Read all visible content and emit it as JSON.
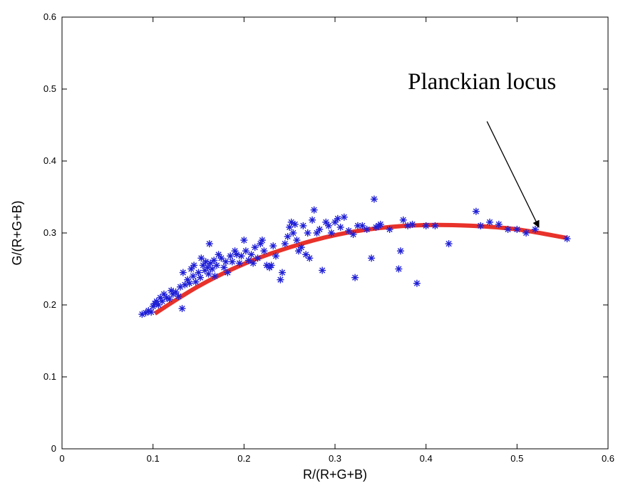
{
  "chart_data": {
    "type": "scatter",
    "title": "",
    "xlabel": "R/(R+G+B)",
    "ylabel": "G/(R+G+B)",
    "xlim": [
      0,
      0.6
    ],
    "ylim": [
      0,
      0.6
    ],
    "grid": false,
    "xticks": [
      0,
      0.1,
      0.2,
      0.3,
      0.4,
      0.5,
      0.6
    ],
    "yticks": [
      0,
      0.1,
      0.2,
      0.3,
      0.4,
      0.5,
      0.6
    ],
    "xtick_labels": [
      "0",
      "0.1",
      "0.2",
      "0.3",
      "0.4",
      "0.5",
      "0.6"
    ],
    "ytick_labels": [
      "0",
      "0.1",
      "0.2",
      "0.3",
      "0.4",
      "0.5",
      "0.6"
    ],
    "series": [
      {
        "kind": "scatter",
        "marker": "asterisk",
        "color": "#1f1fd6",
        "points": [
          [
            0.088,
            0.187
          ],
          [
            0.092,
            0.189
          ],
          [
            0.095,
            0.192
          ],
          [
            0.098,
            0.19
          ],
          [
            0.1,
            0.198
          ],
          [
            0.102,
            0.202
          ],
          [
            0.104,
            0.205
          ],
          [
            0.106,
            0.2
          ],
          [
            0.108,
            0.21
          ],
          [
            0.11,
            0.205
          ],
          [
            0.112,
            0.215
          ],
          [
            0.115,
            0.21
          ],
          [
            0.118,
            0.208
          ],
          [
            0.12,
            0.22
          ],
          [
            0.122,
            0.215
          ],
          [
            0.125,
            0.218
          ],
          [
            0.128,
            0.212
          ],
          [
            0.13,
            0.225
          ],
          [
            0.132,
            0.195
          ],
          [
            0.133,
            0.245
          ],
          [
            0.135,
            0.228
          ],
          [
            0.138,
            0.235
          ],
          [
            0.14,
            0.23
          ],
          [
            0.142,
            0.25
          ],
          [
            0.144,
            0.24
          ],
          [
            0.145,
            0.255
          ],
          [
            0.147,
            0.232
          ],
          [
            0.15,
            0.245
          ],
          [
            0.152,
            0.238
          ],
          [
            0.153,
            0.265
          ],
          [
            0.155,
            0.255
          ],
          [
            0.157,
            0.248
          ],
          [
            0.158,
            0.26
          ],
          [
            0.16,
            0.252
          ],
          [
            0.161,
            0.243
          ],
          [
            0.162,
            0.285
          ],
          [
            0.163,
            0.258
          ],
          [
            0.165,
            0.25
          ],
          [
            0.167,
            0.262
          ],
          [
            0.168,
            0.24
          ],
          [
            0.17,
            0.255
          ],
          [
            0.172,
            0.27
          ],
          [
            0.175,
            0.265
          ],
          [
            0.178,
            0.252
          ],
          [
            0.18,
            0.26
          ],
          [
            0.182,
            0.245
          ],
          [
            0.185,
            0.268
          ],
          [
            0.187,
            0.26
          ],
          [
            0.19,
            0.275
          ],
          [
            0.192,
            0.27
          ],
          [
            0.195,
            0.258
          ],
          [
            0.197,
            0.268
          ],
          [
            0.2,
            0.29
          ],
          [
            0.202,
            0.275
          ],
          [
            0.205,
            0.262
          ],
          [
            0.208,
            0.27
          ],
          [
            0.21,
            0.258
          ],
          [
            0.212,
            0.28
          ],
          [
            0.215,
            0.265
          ],
          [
            0.218,
            0.285
          ],
          [
            0.22,
            0.29
          ],
          [
            0.222,
            0.275
          ],
          [
            0.225,
            0.255
          ],
          [
            0.228,
            0.252
          ],
          [
            0.23,
            0.255
          ],
          [
            0.232,
            0.282
          ],
          [
            0.235,
            0.268
          ],
          [
            0.24,
            0.235
          ],
          [
            0.242,
            0.245
          ],
          [
            0.245,
            0.285
          ],
          [
            0.248,
            0.295
          ],
          [
            0.25,
            0.308
          ],
          [
            0.252,
            0.315
          ],
          [
            0.254,
            0.3
          ],
          [
            0.256,
            0.312
          ],
          [
            0.258,
            0.29
          ],
          [
            0.26,
            0.275
          ],
          [
            0.263,
            0.28
          ],
          [
            0.265,
            0.31
          ],
          [
            0.268,
            0.27
          ],
          [
            0.27,
            0.3
          ],
          [
            0.272,
            0.265
          ],
          [
            0.275,
            0.318
          ],
          [
            0.277,
            0.332
          ],
          [
            0.28,
            0.3
          ],
          [
            0.283,
            0.305
          ],
          [
            0.286,
            0.248
          ],
          [
            0.29,
            0.315
          ],
          [
            0.293,
            0.31
          ],
          [
            0.296,
            0.3
          ],
          [
            0.3,
            0.315
          ],
          [
            0.303,
            0.32
          ],
          [
            0.306,
            0.308
          ],
          [
            0.31,
            0.322
          ],
          [
            0.315,
            0.303
          ],
          [
            0.32,
            0.298
          ],
          [
            0.322,
            0.238
          ],
          [
            0.325,
            0.31
          ],
          [
            0.33,
            0.31
          ],
          [
            0.335,
            0.305
          ],
          [
            0.34,
            0.265
          ],
          [
            0.343,
            0.347
          ],
          [
            0.345,
            0.308
          ],
          [
            0.348,
            0.31
          ],
          [
            0.35,
            0.312
          ],
          [
            0.36,
            0.305
          ],
          [
            0.37,
            0.25
          ],
          [
            0.372,
            0.275
          ],
          [
            0.375,
            0.318
          ],
          [
            0.38,
            0.31
          ],
          [
            0.385,
            0.312
          ],
          [
            0.39,
            0.23
          ],
          [
            0.4,
            0.31
          ],
          [
            0.41,
            0.31
          ],
          [
            0.425,
            0.285
          ],
          [
            0.455,
            0.33
          ],
          [
            0.46,
            0.31
          ],
          [
            0.47,
            0.315
          ],
          [
            0.48,
            0.312
          ],
          [
            0.49,
            0.305
          ],
          [
            0.5,
            0.305
          ],
          [
            0.51,
            0.3
          ],
          [
            0.52,
            0.305
          ],
          [
            0.555,
            0.292
          ]
        ]
      },
      {
        "kind": "line",
        "name": "Planckian locus",
        "color": "#e8322a",
        "points": [
          [
            0.102,
            0.188
          ],
          [
            0.15,
            0.226
          ],
          [
            0.2,
            0.257
          ],
          [
            0.25,
            0.28
          ],
          [
            0.3,
            0.297
          ],
          [
            0.35,
            0.307
          ],
          [
            0.4,
            0.311
          ],
          [
            0.45,
            0.31
          ],
          [
            0.5,
            0.305
          ],
          [
            0.555,
            0.293
          ]
        ]
      }
    ],
    "annotations": [
      {
        "text": "Planckian locus",
        "text_at": [
          0.38,
          0.5
        ],
        "arrow_from": [
          0.467,
          0.455
        ],
        "arrow_to": [
          0.524,
          0.308
        ]
      }
    ]
  }
}
